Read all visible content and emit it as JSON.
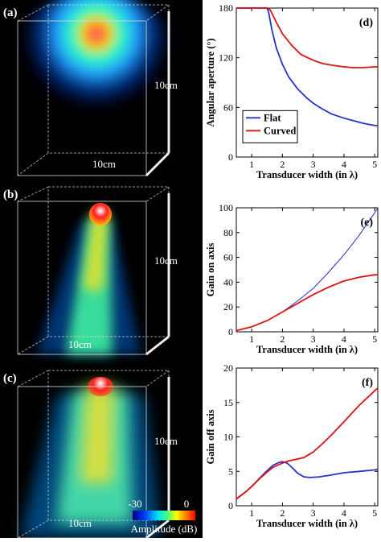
{
  "panels": [
    {
      "label": "(a)",
      "depth_label": "10cm",
      "width_label": "10cm"
    },
    {
      "label": "(b)",
      "depth_label": "10cm",
      "width_label": "10cm"
    },
    {
      "label": "(c)",
      "depth_label": "10cm",
      "width_label": "10cm"
    }
  ],
  "colorbar": {
    "min_label": "-30",
    "max_label": "0",
    "title": "Amplitude (dB)"
  },
  "colors": {
    "flat": "#2233cc",
    "curved": "#dd1111"
  },
  "chart_data": [
    {
      "id": "d",
      "panel_label": "(d)",
      "type": "line",
      "xlabel": "Transducer width (in λ)",
      "ylabel": "Angular aperture (°)",
      "xlim": [
        0.5,
        5.1
      ],
      "ylim": [
        0,
        180
      ],
      "xticks": [
        1,
        2,
        3,
        4,
        5
      ],
      "yticks": [
        0,
        60,
        120,
        180
      ],
      "legend": {
        "placement": "bottom-left",
        "entries": [
          "Flat",
          "Curved"
        ]
      },
      "series": [
        {
          "name": "Flat",
          "color": "#2233cc",
          "x": [
            0.5,
            1.0,
            1.5,
            1.55,
            1.65,
            1.8,
            2.0,
            2.2,
            2.5,
            2.8,
            3.0,
            3.3,
            3.6,
            4.0,
            4.3,
            4.6,
            5.0,
            5.1
          ],
          "y": [
            180,
            180,
            180,
            175,
            155,
            132,
            112,
            97,
            82,
            71,
            65,
            58,
            52,
            47,
            44,
            41,
            38,
            38
          ]
        },
        {
          "name": "Curved",
          "color": "#dd1111",
          "x": [
            0.5,
            1.0,
            1.5,
            1.6,
            1.8,
            2.0,
            2.3,
            2.6,
            3.0,
            3.3,
            3.6,
            4.0,
            4.3,
            4.6,
            5.0,
            5.1
          ],
          "y": [
            180,
            180,
            180,
            178,
            163,
            149,
            135,
            124,
            117,
            113,
            111,
            109,
            108,
            108,
            109,
            109
          ]
        }
      ]
    },
    {
      "id": "e",
      "panel_label": "(e)",
      "type": "line",
      "xlabel": "Transducer width (in λ)",
      "ylabel": "Gain on axis",
      "xlim": [
        0.5,
        5.1
      ],
      "ylim": [
        0,
        100
      ],
      "xticks": [
        1,
        2,
        3,
        4,
        5
      ],
      "yticks": [
        0,
        20,
        40,
        60,
        80,
        100
      ],
      "series": [
        {
          "name": "",
          "color": "#2233cc",
          "x": [
            0.5,
            1.0,
            1.5,
            2.0,
            2.5,
            3.0,
            3.5,
            4.0,
            4.5,
            5.0,
            5.1
          ],
          "y": [
            1,
            4,
            9,
            16,
            25,
            35,
            48,
            62,
            78,
            96,
            100
          ]
        },
        {
          "name": "",
          "color": "#dd1111",
          "x": [
            0.5,
            1.0,
            1.5,
            2.0,
            2.5,
            3.0,
            3.5,
            4.0,
            4.5,
            5.0,
            5.1
          ],
          "y": [
            1,
            4,
            9,
            16,
            23,
            30,
            36,
            41,
            44,
            46,
            46
          ]
        }
      ]
    },
    {
      "id": "f",
      "panel_label": "(f)",
      "type": "line",
      "xlabel": "Transducer width (in λ)",
      "ylabel": "Gain off axis",
      "xlim": [
        0.5,
        5.1
      ],
      "ylim": [
        0,
        20
      ],
      "xticks": [
        1,
        2,
        3,
        4,
        5
      ],
      "yticks": [
        0,
        5,
        10,
        15,
        20
      ],
      "series": [
        {
          "name": "",
          "color": "#2233cc",
          "x": [
            0.5,
            0.8,
            1.0,
            1.3,
            1.5,
            1.7,
            1.9,
            2.0,
            2.15,
            2.3,
            2.5,
            2.7,
            2.9,
            3.2,
            3.5,
            4.0,
            4.5,
            5.0,
            5.1
          ],
          "y": [
            1.0,
            2.0,
            2.8,
            4.2,
            5.1,
            5.9,
            6.3,
            6.4,
            6.2,
            5.6,
            4.7,
            4.2,
            4.1,
            4.2,
            4.4,
            4.8,
            5.0,
            5.2,
            5.3
          ]
        },
        {
          "name": "",
          "color": "#dd1111",
          "x": [
            0.5,
            0.8,
            1.0,
            1.3,
            1.5,
            1.7,
            1.9,
            2.0,
            2.2,
            2.5,
            2.7,
            3.0,
            3.3,
            3.6,
            4.0,
            4.5,
            5.0,
            5.1
          ],
          "y": [
            1.0,
            2.0,
            2.8,
            4.1,
            4.9,
            5.6,
            6.0,
            6.2,
            6.5,
            6.8,
            7.0,
            7.8,
            9.0,
            10.3,
            12.2,
            14.6,
            16.7,
            17.1
          ]
        }
      ]
    }
  ]
}
